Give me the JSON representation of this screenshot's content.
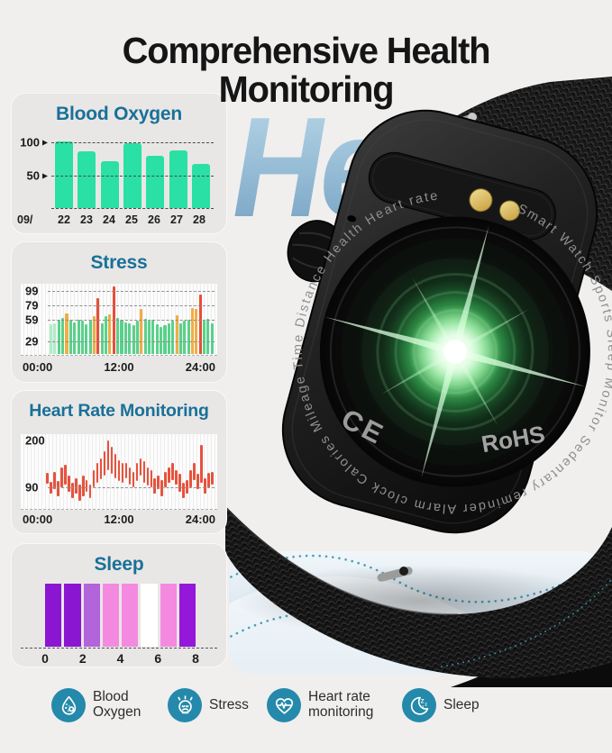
{
  "page": {
    "title_lines": [
      "Comprehensive Health",
      "Monitoring"
    ],
    "background_watermark": "He"
  },
  "colors": {
    "accent_teal": "#1a7099",
    "icon_circle": "#2489aa",
    "bar_green": "#2be0a5",
    "stress_pale": "#b2ecca",
    "stress_green": "#5ad18b",
    "stress_orange": "#f0ad45",
    "stress_red": "#e64e38",
    "heart_red": "#e8523c",
    "sleep_deep_purple": "#8a16d2",
    "sleep_light_purple": "#b264da",
    "sleep_pink": "#f48ae0",
    "sleep_white": "#ffffff"
  },
  "chart_data": [
    {
      "id": "blood_oxygen",
      "type": "bar",
      "title": "Blood Oxygen",
      "x_prefix": "09/",
      "categories": [
        "22",
        "23",
        "24",
        "25",
        "26",
        "27",
        "28"
      ],
      "values": [
        100,
        85,
        70,
        97,
        78,
        86,
        66
      ],
      "yticks": [
        100,
        50
      ],
      "ylim": [
        0,
        100
      ],
      "grid": "dashed-horizontal",
      "legend": "none"
    },
    {
      "id": "stress",
      "type": "bar",
      "title": "Stress",
      "xticks": [
        "00:00",
        "12:00",
        "24:00"
      ],
      "yticks": [
        99,
        79,
        59,
        29
      ],
      "ylim": [
        9,
        109
      ],
      "grid": "dashed-horizontal",
      "legend": "none",
      "values": [
        50,
        52,
        57,
        59,
        65,
        56,
        53,
        57,
        55,
        50,
        57,
        61,
        86,
        51,
        61,
        64,
        103,
        59,
        56,
        53,
        51,
        49,
        55,
        72,
        58,
        55,
        56,
        50,
        47,
        49,
        52,
        55,
        63,
        52,
        55,
        57,
        73,
        71,
        92,
        55,
        58,
        52
      ],
      "states": [
        "pale",
        "pale",
        "green",
        "green",
        "orange",
        "green",
        "green",
        "green",
        "green",
        "green",
        "green",
        "orange",
        "red",
        "green",
        "green",
        "orange",
        "red",
        "green",
        "green",
        "green",
        "green",
        "green",
        "green",
        "orange",
        "green",
        "green",
        "green",
        "green",
        "green",
        "green",
        "green",
        "green",
        "orange",
        "green",
        "green",
        "green",
        "orange",
        "orange",
        "red",
        "green",
        "green",
        "green"
      ]
    },
    {
      "id": "heart_rate",
      "type": "range-bar",
      "title": "Heart Rate Monitoring",
      "xticks": [
        "00:00",
        "12:00",
        "24:00"
      ],
      "yticks": [
        200,
        90
      ],
      "ylim": [
        40,
        210
      ],
      "grid": "dashed-line-at-90",
      "legend": "none",
      "ranges": [
        [
          95,
          118
        ],
        [
          72,
          98
        ],
        [
          82,
          122
        ],
        [
          66,
          100
        ],
        [
          86,
          132
        ],
        [
          92,
          138
        ],
        [
          76,
          112
        ],
        [
          62,
          96
        ],
        [
          72,
          106
        ],
        [
          56,
          92
        ],
        [
          66,
          112
        ],
        [
          76,
          102
        ],
        [
          62,
          92
        ],
        [
          86,
          126
        ],
        [
          96,
          142
        ],
        [
          104,
          152
        ],
        [
          112,
          168
        ],
        [
          126,
          192
        ],
        [
          116,
          178
        ],
        [
          106,
          162
        ],
        [
          100,
          148
        ],
        [
          96,
          142
        ],
        [
          106,
          142
        ],
        [
          92,
          132
        ],
        [
          86,
          122
        ],
        [
          100,
          142
        ],
        [
          112,
          152
        ],
        [
          96,
          146
        ],
        [
          90,
          132
        ],
        [
          86,
          126
        ],
        [
          72,
          106
        ],
        [
          82,
          112
        ],
        [
          66,
          102
        ],
        [
          86,
          122
        ],
        [
          96,
          132
        ],
        [
          102,
          142
        ],
        [
          92,
          126
        ],
        [
          76,
          116
        ],
        [
          62,
          96
        ],
        [
          72,
          102
        ],
        [
          86,
          126
        ],
        [
          102,
          142
        ],
        [
          82,
          116
        ],
        [
          96,
          182
        ],
        [
          72,
          106
        ],
        [
          86,
          118
        ],
        [
          92,
          122
        ]
      ]
    },
    {
      "id": "sleep",
      "type": "segment-bar",
      "title": "Sleep",
      "xticks": [
        "0",
        "2",
        "4",
        "6",
        "8"
      ],
      "xlim": [
        0,
        8
      ],
      "segment_hours": 1,
      "segment_colors": [
        "#8a16d2",
        "#8a16d2",
        "#b264da",
        "#f48ae0",
        "#f48ae0",
        "#ffffff",
        "#f48ae0",
        "#9517da"
      ],
      "legend": "none"
    }
  ],
  "watch": {
    "engraved_text": "Smart Watch  Sports  Sleep Monitor  Sedentary reminder  Alarm clock Calories Mileage Time Distance Health Heart rate",
    "ce_label": "CE",
    "rohs_label": "RoHS"
  },
  "features": [
    {
      "icon": "blood-oxygen-icon",
      "label": "Blood Oxygen"
    },
    {
      "icon": "stress-icon",
      "label": "Stress"
    },
    {
      "icon": "heart-rate-icon",
      "label": "Heart rate monitoring"
    },
    {
      "icon": "sleep-icon",
      "label": "Sleep"
    }
  ]
}
